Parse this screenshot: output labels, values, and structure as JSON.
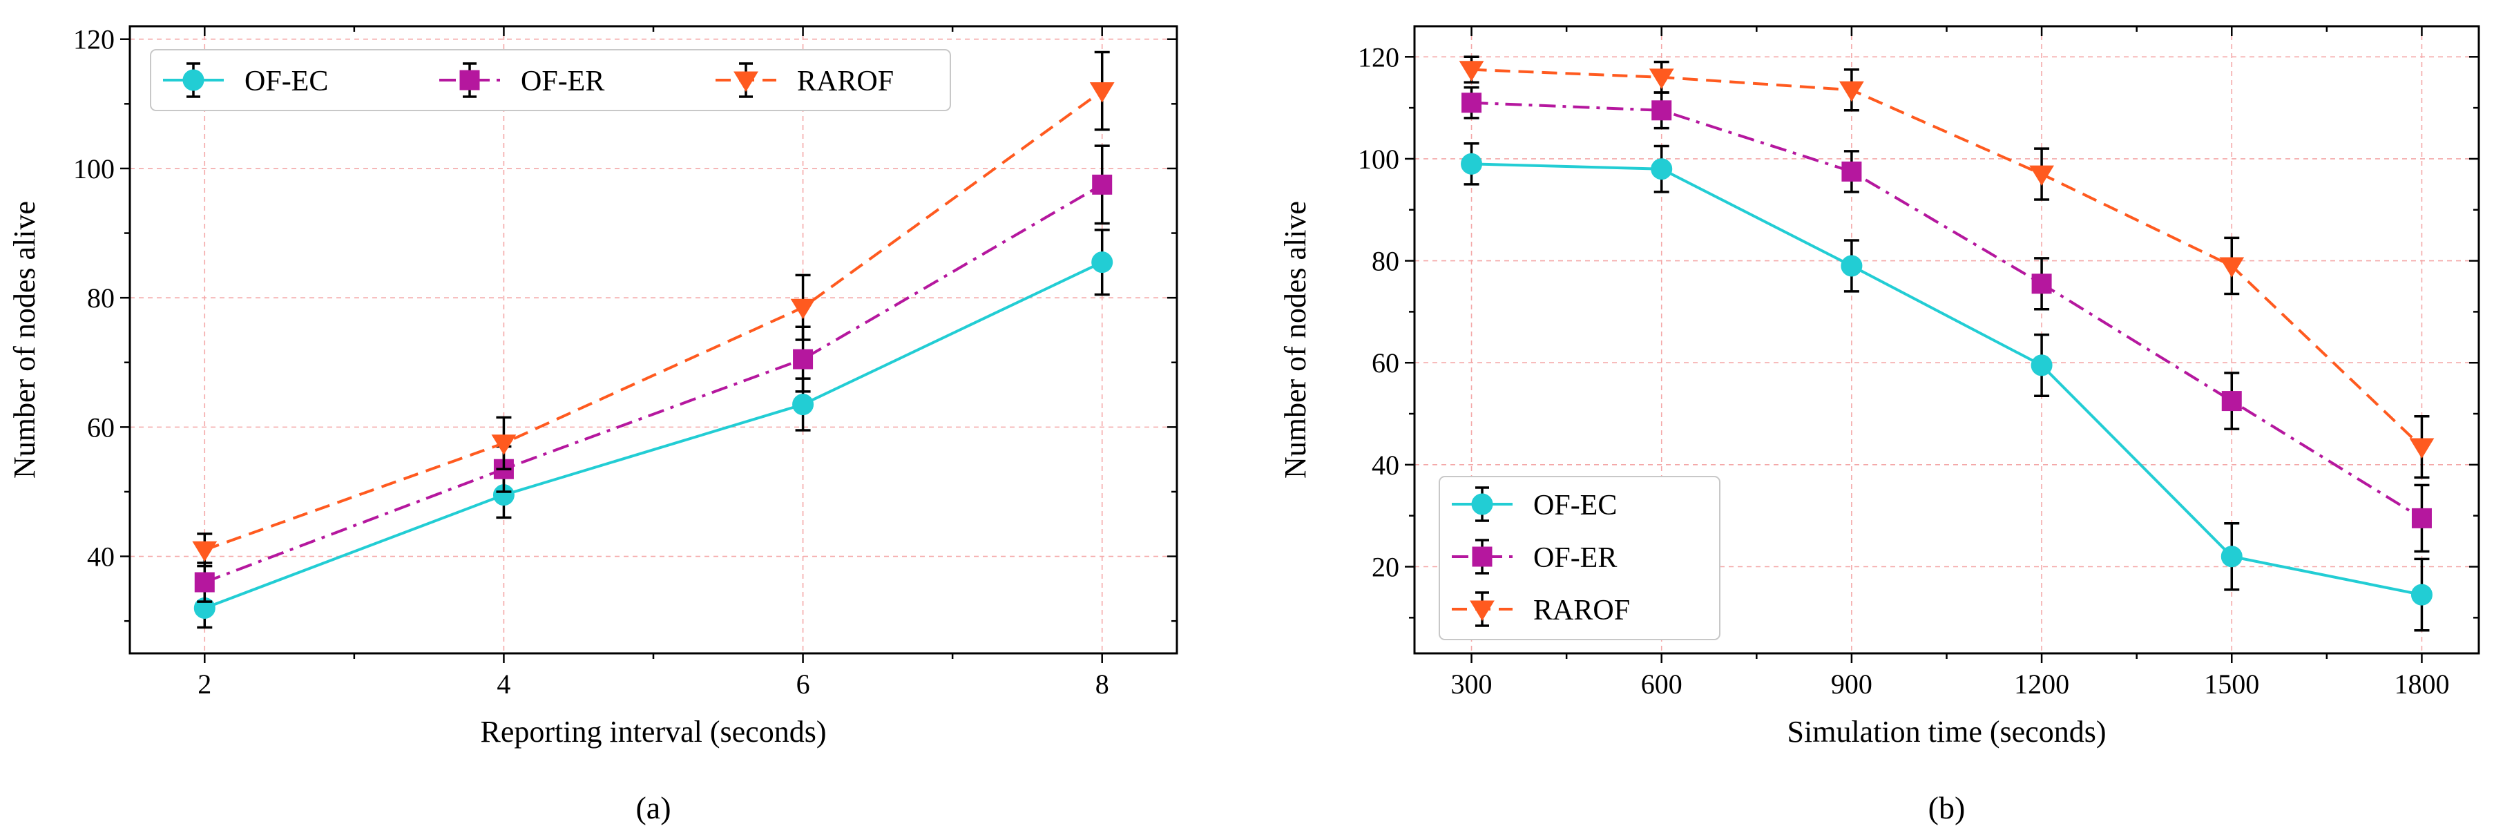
{
  "chart_data": [
    {
      "type": "line",
      "panel_label": "(a)",
      "xlabel": "Reporting interval (seconds)",
      "ylabel": "Number of nodes alive",
      "x": [
        2,
        4,
        6,
        8
      ],
      "x_tick_labels": [
        "2",
        "4",
        "6",
        "8"
      ],
      "xlim": [
        1.5,
        8.5
      ],
      "ylim": [
        25,
        122
      ],
      "y_ticks": [
        40,
        60,
        80,
        100,
        120
      ],
      "grid": true,
      "legend_position": "top",
      "series": [
        {
          "name": "OF-EC",
          "color": "#22cdd4",
          "dash": "solid",
          "marker": "circle",
          "values": [
            32.0,
            49.5,
            63.5,
            85.5
          ],
          "errors": [
            3,
            3.5,
            4,
            5
          ]
        },
        {
          "name": "OF-ER",
          "color": "#b5179e",
          "dash": "dashdot",
          "marker": "square",
          "values": [
            36.0,
            53.5,
            70.5,
            97.5
          ],
          "errors": [
            3,
            3.5,
            5,
            6
          ]
        },
        {
          "name": "RAROF",
          "color": "#ff5a1f",
          "dash": "dashed",
          "marker": "triangle-down",
          "values": [
            41.0,
            57.5,
            78.5,
            112.0
          ],
          "errors": [
            2.5,
            4,
            5,
            6
          ]
        }
      ]
    },
    {
      "type": "line",
      "panel_label": "(b)",
      "xlabel": "Simulation time (seconds)",
      "ylabel": "Number of nodes alive",
      "x": [
        300,
        600,
        900,
        1200,
        1500,
        1800
      ],
      "x_tick_labels": [
        "300",
        "600",
        "900",
        "1200",
        "1500",
        "1800"
      ],
      "xlim": [
        210,
        1890
      ],
      "ylim": [
        3,
        126
      ],
      "y_ticks": [
        20,
        40,
        60,
        80,
        100,
        120
      ],
      "grid": true,
      "legend_position": "bottom-left",
      "series": [
        {
          "name": "OF-EC",
          "color": "#22cdd4",
          "dash": "solid",
          "marker": "circle",
          "values": [
            99,
            98,
            79,
            59.5,
            22,
            14.5
          ],
          "errors": [
            4,
            4.5,
            5,
            6,
            6.5,
            7
          ]
        },
        {
          "name": "OF-ER",
          "color": "#b5179e",
          "dash": "dashdot",
          "marker": "square",
          "values": [
            111,
            109.5,
            97.5,
            75.5,
            52.5,
            29.5
          ],
          "errors": [
            3,
            3.5,
            4,
            5,
            5.5,
            6.5
          ]
        },
        {
          "name": "RAROF",
          "color": "#ff5a1f",
          "dash": "dashed",
          "marker": "triangle-down",
          "values": [
            117.5,
            116,
            113.5,
            97,
            79,
            43.5
          ],
          "errors": [
            2.5,
            3,
            4,
            5,
            5.5,
            6
          ]
        }
      ]
    }
  ]
}
